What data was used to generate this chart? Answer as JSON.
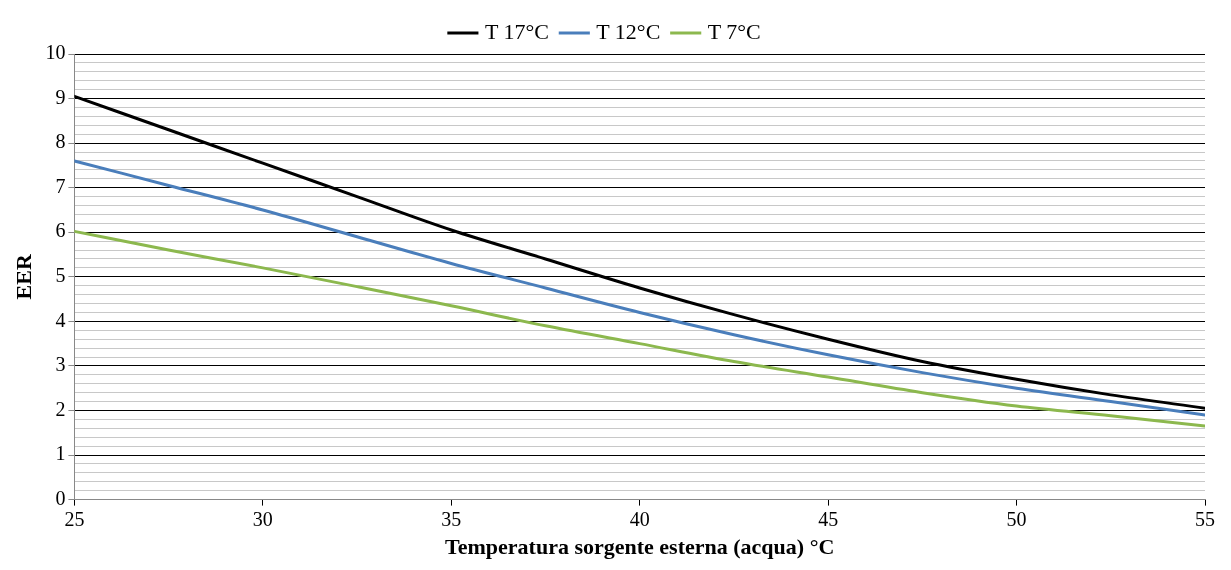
{
  "chart_data": {
    "type": "line",
    "xlabel": "Temperatura sorgente esterna (acqua) °C",
    "ylabel": "EER",
    "x": [
      25,
      27.5,
      30,
      32.5,
      35,
      37.5,
      40,
      42.5,
      45,
      47.5,
      50,
      52.5,
      55
    ],
    "series": [
      {
        "name": "T 17°C",
        "color": "#000000",
        "values": [
          9.05,
          8.3,
          7.55,
          6.8,
          6.05,
          5.4,
          4.75,
          4.15,
          3.6,
          3.1,
          2.7,
          2.35,
          2.05
        ]
      },
      {
        "name": "T 12°C",
        "color": "#4a7ebb",
        "values": [
          7.6,
          7.05,
          6.5,
          5.9,
          5.3,
          4.75,
          4.2,
          3.7,
          3.25,
          2.85,
          2.5,
          2.2,
          1.9
        ]
      },
      {
        "name": "T 7°C",
        "color": "#8cb84e",
        "values": [
          6.02,
          5.6,
          5.2,
          4.78,
          4.35,
          3.9,
          3.5,
          3.1,
          2.75,
          2.4,
          2.1,
          1.88,
          1.65
        ]
      }
    ],
    "xlim": [
      25,
      55
    ],
    "xticks": [
      25,
      30,
      35,
      40,
      45,
      50,
      55
    ],
    "ylim": [
      0,
      10
    ],
    "yticks": [
      0,
      {
        "value": 0.2,
        "label": null
      },
      {
        "value": 0.4,
        "label": null
      },
      {
        "value": 0.6,
        "label": null
      },
      {
        "value": 0.8,
        "label": null
      },
      1,
      {
        "value": 1.2,
        "label": null
      },
      {
        "value": 1.4,
        "label": null
      },
      {
        "value": 1.6,
        "label": null
      },
      {
        "value": 1.8,
        "label": null
      },
      2,
      {
        "value": 2.2,
        "label": null
      },
      {
        "value": 2.4,
        "label": null
      },
      {
        "value": 2.6,
        "label": null
      },
      {
        "value": 2.8,
        "label": null
      },
      3,
      {
        "value": 3.2,
        "label": null
      },
      {
        "value": 3.4,
        "label": null
      },
      {
        "value": 3.6,
        "label": null
      },
      {
        "value": 3.8,
        "label": null
      },
      4,
      {
        "value": 4.2,
        "label": null
      },
      {
        "value": 4.4,
        "label": null
      },
      {
        "value": 4.6,
        "label": null
      },
      {
        "value": 4.8,
        "label": null
      },
      5,
      {
        "value": 5.2,
        "label": null
      },
      {
        "value": 5.4,
        "label": null
      },
      {
        "value": 5.6,
        "label": null
      },
      {
        "value": 5.8,
        "label": null
      },
      6,
      {
        "value": 6.2,
        "label": null
      },
      {
        "value": 6.4,
        "label": null
      },
      {
        "value": 6.6,
        "label": null
      },
      {
        "value": 6.8,
        "label": null
      },
      7,
      {
        "value": 7.2,
        "label": null
      },
      {
        "value": 7.4,
        "label": null
      },
      {
        "value": 7.6,
        "label": null
      },
      {
        "value": 7.8,
        "label": null
      },
      8,
      {
        "value": 8.2,
        "label": null
      },
      {
        "value": 8.4,
        "label": null
      },
      {
        "value": 8.6,
        "label": null
      },
      {
        "value": 8.8,
        "label": null
      },
      9,
      {
        "value": 9.2,
        "label": null
      },
      {
        "value": 9.4,
        "label": null
      },
      {
        "value": 9.6,
        "label": null
      },
      {
        "value": 9.8,
        "label": null
      },
      10
    ],
    "grid": "y",
    "legend": "top",
    "marker": "none",
    "line_style": "solid"
  }
}
